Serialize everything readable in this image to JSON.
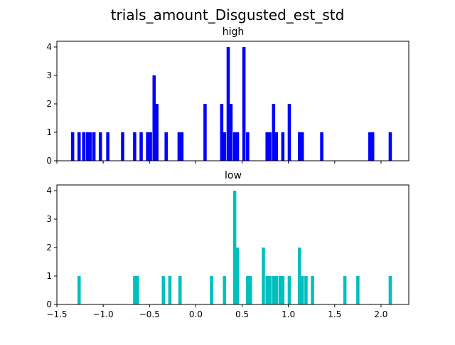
{
  "chart_data": {
    "type": "histogram",
    "title": "trials_amount_Disgusted_est_std",
    "bin_width": 0.035,
    "xlim": [
      -1.5,
      2.3
    ],
    "x_ticks": [
      -1.5,
      -1.0,
      -0.5,
      0.0,
      0.5,
      1.0,
      1.5,
      2.0
    ],
    "x_tick_labels": [
      "−1.5",
      "−1.0",
      "−0.5",
      "0.0",
      "0.5",
      "1.0",
      "1.5",
      "2.0"
    ],
    "x_tick_labels_shown_on": "bottom panel only",
    "panels": [
      {
        "title": "high",
        "color": "#0000ff",
        "ylim": [
          0,
          4.2
        ],
        "y_ticks": [
          0,
          1,
          2,
          3,
          4
        ],
        "bins": [
          {
            "x": -1.33,
            "count": 1
          },
          {
            "x": -1.26,
            "count": 1
          },
          {
            "x": -1.21,
            "count": 1
          },
          {
            "x": -1.17,
            "count": 1
          },
          {
            "x": -1.14,
            "count": 1
          },
          {
            "x": -1.1,
            "count": 1
          },
          {
            "x": -1.03,
            "count": 1
          },
          {
            "x": -0.95,
            "count": 1
          },
          {
            "x": -0.79,
            "count": 1
          },
          {
            "x": -0.66,
            "count": 1
          },
          {
            "x": -0.59,
            "count": 1
          },
          {
            "x": -0.52,
            "count": 1
          },
          {
            "x": -0.49,
            "count": 1
          },
          {
            "x": -0.45,
            "count": 3
          },
          {
            "x": -0.42,
            "count": 2
          },
          {
            "x": -0.32,
            "count": 1
          },
          {
            "x": -0.18,
            "count": 1
          },
          {
            "x": -0.15,
            "count": 1
          },
          {
            "x": 0.1,
            "count": 2
          },
          {
            "x": 0.28,
            "count": 2
          },
          {
            "x": 0.31,
            "count": 1
          },
          {
            "x": 0.35,
            "count": 4
          },
          {
            "x": 0.38,
            "count": 2
          },
          {
            "x": 0.42,
            "count": 1
          },
          {
            "x": 0.45,
            "count": 1
          },
          {
            "x": 0.52,
            "count": 4
          },
          {
            "x": 0.56,
            "count": 1
          },
          {
            "x": 0.77,
            "count": 1
          },
          {
            "x": 0.8,
            "count": 1
          },
          {
            "x": 0.84,
            "count": 2
          },
          {
            "x": 0.87,
            "count": 1
          },
          {
            "x": 0.94,
            "count": 1
          },
          {
            "x": 1.01,
            "count": 2
          },
          {
            "x": 1.12,
            "count": 1
          },
          {
            "x": 1.15,
            "count": 1
          },
          {
            "x": 1.36,
            "count": 1
          },
          {
            "x": 1.88,
            "count": 1
          },
          {
            "x": 1.91,
            "count": 1
          },
          {
            "x": 2.1,
            "count": 1
          }
        ]
      },
      {
        "title": "low",
        "color": "#00bfbf",
        "ylim": [
          0,
          4.2
        ],
        "y_ticks": [
          0,
          1,
          2,
          3,
          4
        ],
        "bins": [
          {
            "x": -1.26,
            "count": 1
          },
          {
            "x": -0.66,
            "count": 1
          },
          {
            "x": -0.63,
            "count": 1
          },
          {
            "x": -0.35,
            "count": 1
          },
          {
            "x": -0.28,
            "count": 1
          },
          {
            "x": -0.17,
            "count": 1
          },
          {
            "x": 0.17,
            "count": 1
          },
          {
            "x": 0.31,
            "count": 1
          },
          {
            "x": 0.42,
            "count": 4
          },
          {
            "x": 0.45,
            "count": 2
          },
          {
            "x": 0.56,
            "count": 1
          },
          {
            "x": 0.59,
            "count": 1
          },
          {
            "x": 0.73,
            "count": 2
          },
          {
            "x": 0.77,
            "count": 1
          },
          {
            "x": 0.8,
            "count": 1
          },
          {
            "x": 0.84,
            "count": 1
          },
          {
            "x": 0.87,
            "count": 1
          },
          {
            "x": 0.91,
            "count": 1
          },
          {
            "x": 0.94,
            "count": 1
          },
          {
            "x": 1.01,
            "count": 1
          },
          {
            "x": 1.12,
            "count": 2
          },
          {
            "x": 1.15,
            "count": 1
          },
          {
            "x": 1.19,
            "count": 1
          },
          {
            "x": 1.26,
            "count": 1
          },
          {
            "x": 1.61,
            "count": 1
          },
          {
            "x": 1.75,
            "count": 1
          },
          {
            "x": 2.1,
            "count": 1
          }
        ]
      }
    ]
  }
}
